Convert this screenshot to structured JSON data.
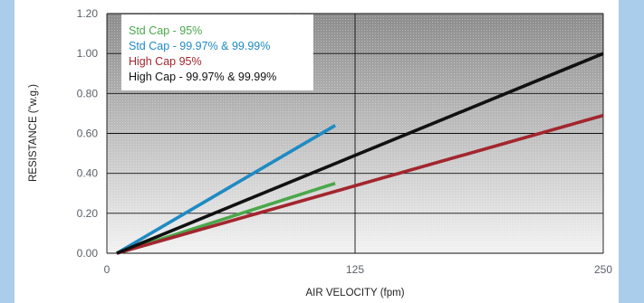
{
  "colors": {
    "frame_blue": "#a9cdea",
    "plot_dark": "#8c8c8c",
    "plot_light": "#f2f2f2",
    "grid": "#111111"
  },
  "chart_data": {
    "type": "line",
    "xlabel": "AIR VELOCITY (fpm)",
    "ylabel": "RESISTANCE (\"w.g.)",
    "xlim": [
      0,
      250
    ],
    "ylim": [
      0,
      1.2
    ],
    "x_ticks": [
      "0",
      "125",
      "250"
    ],
    "y_ticks": [
      "0.00",
      "0.20",
      "0.40",
      "0.60",
      "0.80",
      "1.00",
      "1.20"
    ],
    "grid": true,
    "legend_position": "top-left",
    "series": [
      {
        "name": "Std Cap - 95%",
        "color": "#4aa84a",
        "x": [
          5,
          115
        ],
        "y": [
          0.0,
          0.35
        ]
      },
      {
        "name": "Std Cap - 99.97% & 99.99%",
        "color": "#1f8ac4",
        "x": [
          5,
          115
        ],
        "y": [
          0.0,
          0.64
        ]
      },
      {
        "name": "High Cap   95%",
        "color": "#a3262e",
        "x": [
          5,
          250
        ],
        "y": [
          0.0,
          0.69
        ]
      },
      {
        "name": "High Cap - 99.97% & 99.99%",
        "color": "#111111",
        "x": [
          5,
          250
        ],
        "y": [
          0.0,
          1.0
        ]
      }
    ]
  }
}
